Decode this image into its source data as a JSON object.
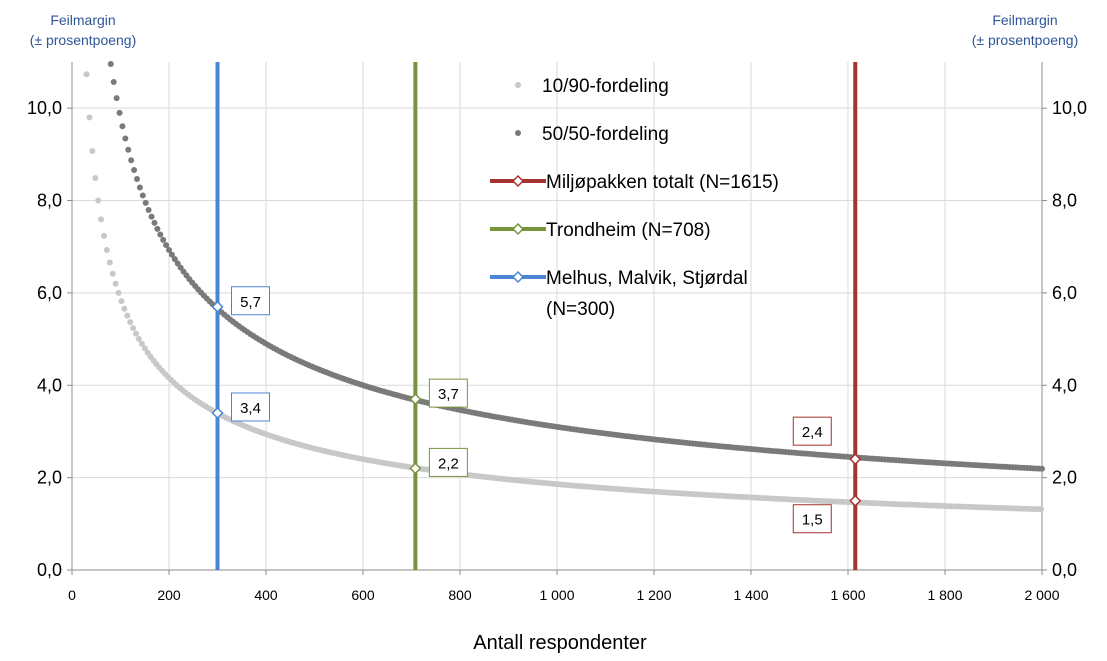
{
  "chart_data": {
    "type": "scatter",
    "xlabel": "Antall respondenter",
    "ylabel_left": "Feilmargin (± prosentpoeng)",
    "ylabel_right": "Feilmargin (± prosentpoeng)",
    "xlim": [
      0,
      2000
    ],
    "ylim": [
      0,
      11
    ],
    "x_ticks": [
      0,
      200,
      400,
      600,
      800,
      1000,
      1200,
      1400,
      1600,
      1800,
      2000
    ],
    "x_tick_labels": [
      "0",
      "200",
      "400",
      "600",
      "800",
      "1 000",
      "1 200",
      "1 400",
      "1 600",
      "1 800",
      "2 000"
    ],
    "y_ticks": [
      0,
      2,
      4,
      6,
      8,
      10
    ],
    "y_tick_labels": [
      "0,0",
      "2,0",
      "4,0",
      "6,0",
      "8,0",
      "10,0"
    ],
    "grid": true,
    "legend_position": "top-center",
    "series": [
      {
        "name": "10/90-fordeling",
        "kind": "curve",
        "p": 0.1,
        "z": 1.96,
        "x_range": [
          30,
          2000
        ],
        "color": "#c8c8c8"
      },
      {
        "name": "50/50-fordeling",
        "kind": "curve",
        "p": 0.5,
        "z": 1.96,
        "x_range": [
          80,
          2000
        ],
        "color": "#7a7a7a"
      },
      {
        "name": "Miljøpakken totalt (N=1615)",
        "kind": "vline",
        "x": 1615,
        "color": "#a5332f",
        "points": [
          {
            "y": 2.4,
            "label": "2,4",
            "label_side": "left-above"
          },
          {
            "y": 1.5,
            "label": "1,5",
            "label_side": "left-below"
          }
        ]
      },
      {
        "name": "Trondheim (N=708)",
        "kind": "vline",
        "x": 708,
        "color": "#77933c",
        "points": [
          {
            "y": 3.7,
            "label": "3,7",
            "label_side": "right"
          },
          {
            "y": 2.2,
            "label": "2,2",
            "label_side": "right"
          }
        ]
      },
      {
        "name": "Melhus, Malvik, Stjørdal (N=300)",
        "kind": "vline",
        "x": 300,
        "color": "#4a86d4",
        "points": [
          {
            "y": 5.7,
            "label": "5,7",
            "label_side": "right"
          },
          {
            "y": 3.4,
            "label": "3,4",
            "label_side": "right"
          }
        ]
      }
    ]
  },
  "legend": {
    "items": [
      {
        "label": "10/90-fordeling",
        "type": "dot",
        "color": "#c8c8c8"
      },
      {
        "label": "50/50-fordeling",
        "type": "dot",
        "color": "#7a7a7a"
      },
      {
        "label": "Miljøpakken totalt (N=1615)",
        "type": "line",
        "color": "#a5332f"
      },
      {
        "label": "Trondheim (N=708)",
        "type": "line",
        "color": "#77933c"
      },
      {
        "label": "Melhus, Malvik, Stjørdal",
        "label2": "(N=300)",
        "type": "line",
        "color": "#4a86d4"
      }
    ]
  },
  "titles": {
    "y_left": "Feilmargin",
    "y_left_2": "(± prosentpoeng)",
    "y_right": "Feilmargin",
    "y_right_2": "(± prosentpoeng)",
    "x": "Antall respondenter"
  }
}
